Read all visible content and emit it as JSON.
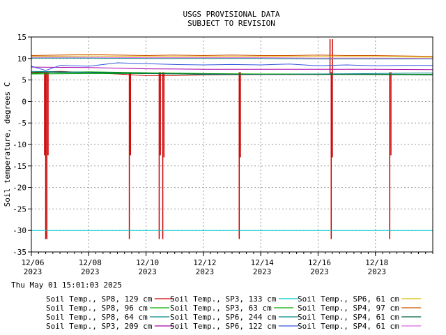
{
  "chart_data": {
    "type": "line",
    "title": "USGS PROVISIONAL DATA",
    "subtitle": "SUBJECT TO REVISION",
    "xlabel": "",
    "ylabel": "Soil temperature, degrees C",
    "ylim": [
      -35,
      15
    ],
    "yticks": [
      15,
      10,
      5,
      0,
      -5,
      -10,
      -15,
      -20,
      -25,
      -30,
      -35
    ],
    "xlim": [
      "2023-12-06",
      "2023-12-20"
    ],
    "xticks": [
      {
        "date": "2023-12-06",
        "line1": "12/06",
        "line2": "2023"
      },
      {
        "date": "2023-12-08",
        "line1": "12/08",
        "line2": "2023"
      },
      {
        "date": "2023-12-10",
        "line1": "12/10",
        "line2": "2023"
      },
      {
        "date": "2023-12-12",
        "line1": "12/12",
        "line2": "2023"
      },
      {
        "date": "2023-12-14",
        "line1": "12/14",
        "line2": "2023"
      },
      {
        "date": "2023-12-16",
        "line1": "12/16",
        "line2": "2023"
      },
      {
        "date": "2023-12-18",
        "line1": "12/18",
        "line2": "2023"
      }
    ],
    "grid": true,
    "legend_position": "bottom",
    "series": [
      {
        "name": "Soil Temp., SP8, 129 cm",
        "color": "#cc0000",
        "points": [
          [
            "2023-12-06",
            6.8
          ],
          [
            "2023-12-06 12:00",
            6.9
          ],
          [
            "2023-12-07",
            7.0
          ],
          [
            "2023-12-09",
            6.4
          ],
          [
            "2023-12-10",
            6.0
          ],
          [
            "2023-12-11",
            6.0
          ],
          [
            "2023-12-12",
            6.2
          ],
          [
            "2023-12-14",
            6.3
          ],
          [
            "2023-12-16",
            6.3
          ],
          [
            "2023-12-17",
            6.3
          ],
          [
            "2023-12-20",
            6.2
          ]
        ],
        "spikes": [
          {
            "date": "2023-12-06 11:00",
            "min": -12.5
          },
          {
            "date": "2023-12-06 12:00",
            "min": -32
          },
          {
            "date": "2023-12-06 13:00",
            "min": -32
          },
          {
            "date": "2023-12-06 14:00",
            "min": -12.5
          },
          {
            "date": "2023-12-09 10:00",
            "min": -32
          },
          {
            "date": "2023-12-09 11:00",
            "min": -12.5
          },
          {
            "date": "2023-12-10 11:00",
            "min": -32
          },
          {
            "date": "2023-12-10 12:00",
            "min": -12.5
          },
          {
            "date": "2023-12-10 14:00",
            "min": -32
          },
          {
            "date": "2023-12-10 15:00",
            "min": -13
          },
          {
            "date": "2023-12-13 06:00",
            "min": -32
          },
          {
            "date": "2023-12-13 07:00",
            "min": -13
          },
          {
            "date": "2023-12-16 11:00",
            "min": -32
          },
          {
            "date": "2023-12-16 12:00",
            "min": -13
          },
          {
            "date": "2023-12-18 12:00",
            "min": -32
          },
          {
            "date": "2023-12-18 13:00",
            "min": -12.5
          }
        ],
        "peaks": [
          {
            "date": "2023-12-16 10:00",
            "max": 14.5
          },
          {
            "date": "2023-12-16 12:00",
            "max": 14.5
          }
        ]
      },
      {
        "name": "Soil Temp., SP8, 96 cm",
        "color": "#00aa00",
        "points": [
          [
            "2023-12-06",
            6.5
          ],
          [
            "2023-12-07",
            6.8
          ],
          [
            "2023-12-08",
            6.9
          ],
          [
            "2023-12-10",
            6.7
          ],
          [
            "2023-12-12",
            6.5
          ],
          [
            "2023-12-14",
            6.4
          ],
          [
            "2023-12-16",
            6.4
          ],
          [
            "2023-12-18",
            6.3
          ],
          [
            "2023-12-20",
            6.3
          ]
        ]
      },
      {
        "name": "Soil Temp., SP8, 64 cm",
        "color": "#008888",
        "points": [
          [
            "2023-12-06",
            7.0
          ],
          [
            "2023-12-08",
            6.8
          ],
          [
            "2023-12-10",
            6.5
          ],
          [
            "2023-12-12",
            6.3
          ],
          [
            "2023-12-14",
            6.3
          ],
          [
            "2023-12-16",
            6.4
          ],
          [
            "2023-12-18",
            6.5
          ],
          [
            "2023-12-19 12:00",
            6.6
          ],
          [
            "2023-12-20",
            6.6
          ]
        ]
      },
      {
        "name": "Soil Temp., SP3, 209 cm",
        "color": "#aa00aa",
        "points": [
          [
            "2023-12-06",
            8.0
          ],
          [
            "2023-12-08",
            7.9
          ],
          [
            "2023-12-10",
            7.6
          ],
          [
            "2023-12-12",
            7.5
          ],
          [
            "2023-12-14",
            7.5
          ],
          [
            "2023-12-16",
            7.5
          ],
          [
            "2023-12-18",
            7.5
          ],
          [
            "2023-12-20",
            7.4
          ]
        ]
      },
      {
        "name": "Soil Temp., SP3, 133 cm",
        "color": "#00cccc",
        "points": [
          [
            "2023-12-06",
            -30.0
          ],
          [
            "2023-12-20",
            -30.0
          ]
        ]
      },
      {
        "name": "Soil Temp., SP3, 63 cm",
        "color": "#00aa00",
        "points": [
          [
            "2023-12-06",
            6.4
          ],
          [
            "2023-12-08",
            6.5
          ],
          [
            "2023-12-10",
            6.5
          ],
          [
            "2023-12-12",
            6.4
          ],
          [
            "2023-12-14",
            6.4
          ],
          [
            "2023-12-16",
            6.3
          ],
          [
            "2023-12-18",
            6.3
          ],
          [
            "2023-12-20",
            6.3
          ]
        ]
      },
      {
        "name": "Soil Temp., SP6, 244 cm",
        "color": "#008888",
        "points": [
          [
            "2023-12-06",
            10.1
          ],
          [
            "2023-12-08",
            10.1
          ],
          [
            "2023-12-10",
            10.0
          ],
          [
            "2023-12-12",
            10.0
          ],
          [
            "2023-12-14",
            10.0
          ],
          [
            "2023-12-16",
            9.9
          ],
          [
            "2023-12-18",
            9.9
          ],
          [
            "2023-12-20",
            9.9
          ]
        ]
      },
      {
        "name": "Soil Temp., SP6, 122 cm",
        "color": "#3355dd",
        "points": [
          [
            "2023-12-06",
            8.2
          ],
          [
            "2023-12-06 12:00",
            7.2
          ],
          [
            "2023-12-07",
            8.4
          ],
          [
            "2023-12-08",
            8.2
          ],
          [
            "2023-12-09",
            9.0
          ],
          [
            "2023-12-10",
            8.8
          ],
          [
            "2023-12-11",
            8.6
          ],
          [
            "2023-12-12",
            8.5
          ],
          [
            "2023-12-13",
            8.6
          ],
          [
            "2023-12-14",
            8.5
          ],
          [
            "2023-12-15",
            8.7
          ],
          [
            "2023-12-16",
            8.3
          ],
          [
            "2023-12-17",
            8.5
          ],
          [
            "2023-12-18",
            8.3
          ],
          [
            "2023-12-19",
            8.4
          ],
          [
            "2023-12-20",
            8.4
          ]
        ]
      },
      {
        "name": "Soil Temp., SP6, 61 cm",
        "color": "#ddbb00",
        "points": [
          [
            "2023-12-06",
            10.5
          ],
          [
            "2023-12-08",
            10.6
          ],
          [
            "2023-12-10",
            10.5
          ],
          [
            "2023-12-12",
            10.4
          ],
          [
            "2023-12-14",
            10.5
          ],
          [
            "2023-12-16",
            10.5
          ],
          [
            "2023-12-18",
            10.4
          ],
          [
            "2023-12-20",
            10.3
          ]
        ]
      },
      {
        "name": "Soil Temp., SP4, 97 cm",
        "color": "#cc5500",
        "points": [
          [
            "2023-12-06",
            10.7
          ],
          [
            "2023-12-07",
            10.8
          ],
          [
            "2023-12-08",
            10.9
          ],
          [
            "2023-12-09",
            10.8
          ],
          [
            "2023-12-10",
            10.7
          ],
          [
            "2023-12-11",
            10.8
          ],
          [
            "2023-12-12",
            10.7
          ],
          [
            "2023-12-13",
            10.8
          ],
          [
            "2023-12-14",
            10.7
          ],
          [
            "2023-12-15",
            10.7
          ],
          [
            "2023-12-16",
            10.8
          ],
          [
            "2023-12-17",
            10.7
          ],
          [
            "2023-12-18",
            10.7
          ],
          [
            "2023-12-19",
            10.6
          ],
          [
            "2023-12-20",
            10.5
          ]
        ]
      },
      {
        "name": "Soil Temp., SP4, 61 cm",
        "color": "#006644",
        "points": [
          [
            "2023-12-06",
            6.7
          ],
          [
            "2023-12-08",
            6.7
          ],
          [
            "2023-12-10",
            6.5
          ],
          [
            "2023-12-12",
            6.4
          ],
          [
            "2023-12-14",
            6.3
          ],
          [
            "2023-12-16",
            6.3
          ],
          [
            "2023-12-18",
            6.3
          ],
          [
            "2023-12-20",
            6.2
          ]
        ]
      },
      {
        "name": "Soil Temp., SP4, 61 cm",
        "color": "#dd66dd",
        "points": [
          [
            "2023-12-06",
            10.3
          ],
          [
            "2023-12-08",
            10.3
          ],
          [
            "2023-12-10",
            10.2
          ],
          [
            "2023-12-12",
            10.2
          ],
          [
            "2023-12-14",
            10.2
          ],
          [
            "2023-12-16",
            10.1
          ],
          [
            "2023-12-18",
            10.1
          ],
          [
            "2023-12-20",
            10.0
          ]
        ]
      }
    ]
  },
  "footer": {
    "timestamp": "Thu May 01 15:01:03 2025"
  }
}
